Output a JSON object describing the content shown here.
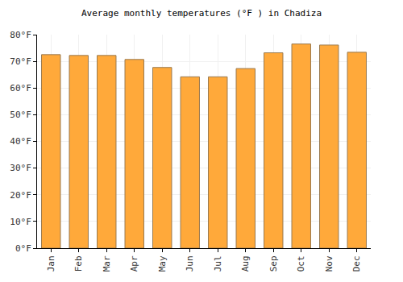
{
  "chart_data": {
    "type": "bar",
    "title": "Average monthly temperatures (°F ) in Chadiza",
    "categories": [
      "Jan",
      "Feb",
      "Mar",
      "Apr",
      "May",
      "Jun",
      "Jul",
      "Aug",
      "Sep",
      "Oct",
      "Nov",
      "Dec"
    ],
    "values": [
      72.5,
      72.2,
      72.2,
      70.7,
      67.7,
      64.2,
      64.2,
      67.3,
      73.2,
      76.5,
      76.1,
      73.4
    ],
    "color": "#ffa93a",
    "ylim": [
      0,
      80
    ],
    "yticks": [
      {
        "value": 0,
        "label": "0°F"
      },
      {
        "value": 10,
        "label": "10°F"
      },
      {
        "value": 20,
        "label": "20°F"
      },
      {
        "value": 30,
        "label": "30°F"
      },
      {
        "value": 40,
        "label": "40°F"
      },
      {
        "value": 50,
        "label": "50°F"
      },
      {
        "value": 60,
        "label": "60°F"
      },
      {
        "value": 70,
        "label": "70°F"
      },
      {
        "value": 80,
        "label": "80°F"
      }
    ],
    "grid": true
  }
}
